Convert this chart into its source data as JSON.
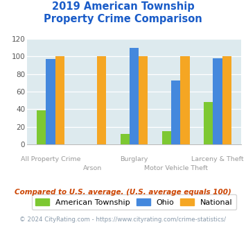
{
  "title_line1": "2019 American Township",
  "title_line2": "Property Crime Comparison",
  "categories": [
    "All Property Crime",
    "Arson",
    "Burglary",
    "Motor Vehicle Theft",
    "Larceny & Theft"
  ],
  "american_township": [
    39,
    0,
    12,
    15,
    48
  ],
  "ohio": [
    97,
    0,
    110,
    73,
    98
  ],
  "national": [
    100,
    100,
    100,
    100,
    100
  ],
  "color_american": "#7dc832",
  "color_ohio": "#4488dd",
  "color_national": "#f5a623",
  "ylim": [
    0,
    120
  ],
  "yticks": [
    0,
    20,
    40,
    60,
    80,
    100,
    120
  ],
  "background_color": "#ddeaee",
  "title_color": "#1a5cc8",
  "xlabel_color_odd": "#999999",
  "xlabel_color_even": "#999999",
  "legend_labels": [
    "American Township",
    "Ohio",
    "National"
  ],
  "footnote1": "Compared to U.S. average. (U.S. average equals 100)",
  "footnote2": "© 2024 CityRating.com - https://www.cityrating.com/crime-statistics/",
  "footnote1_color": "#cc4400",
  "footnote2_color": "#8899aa",
  "footnote2_link_color": "#4488cc"
}
